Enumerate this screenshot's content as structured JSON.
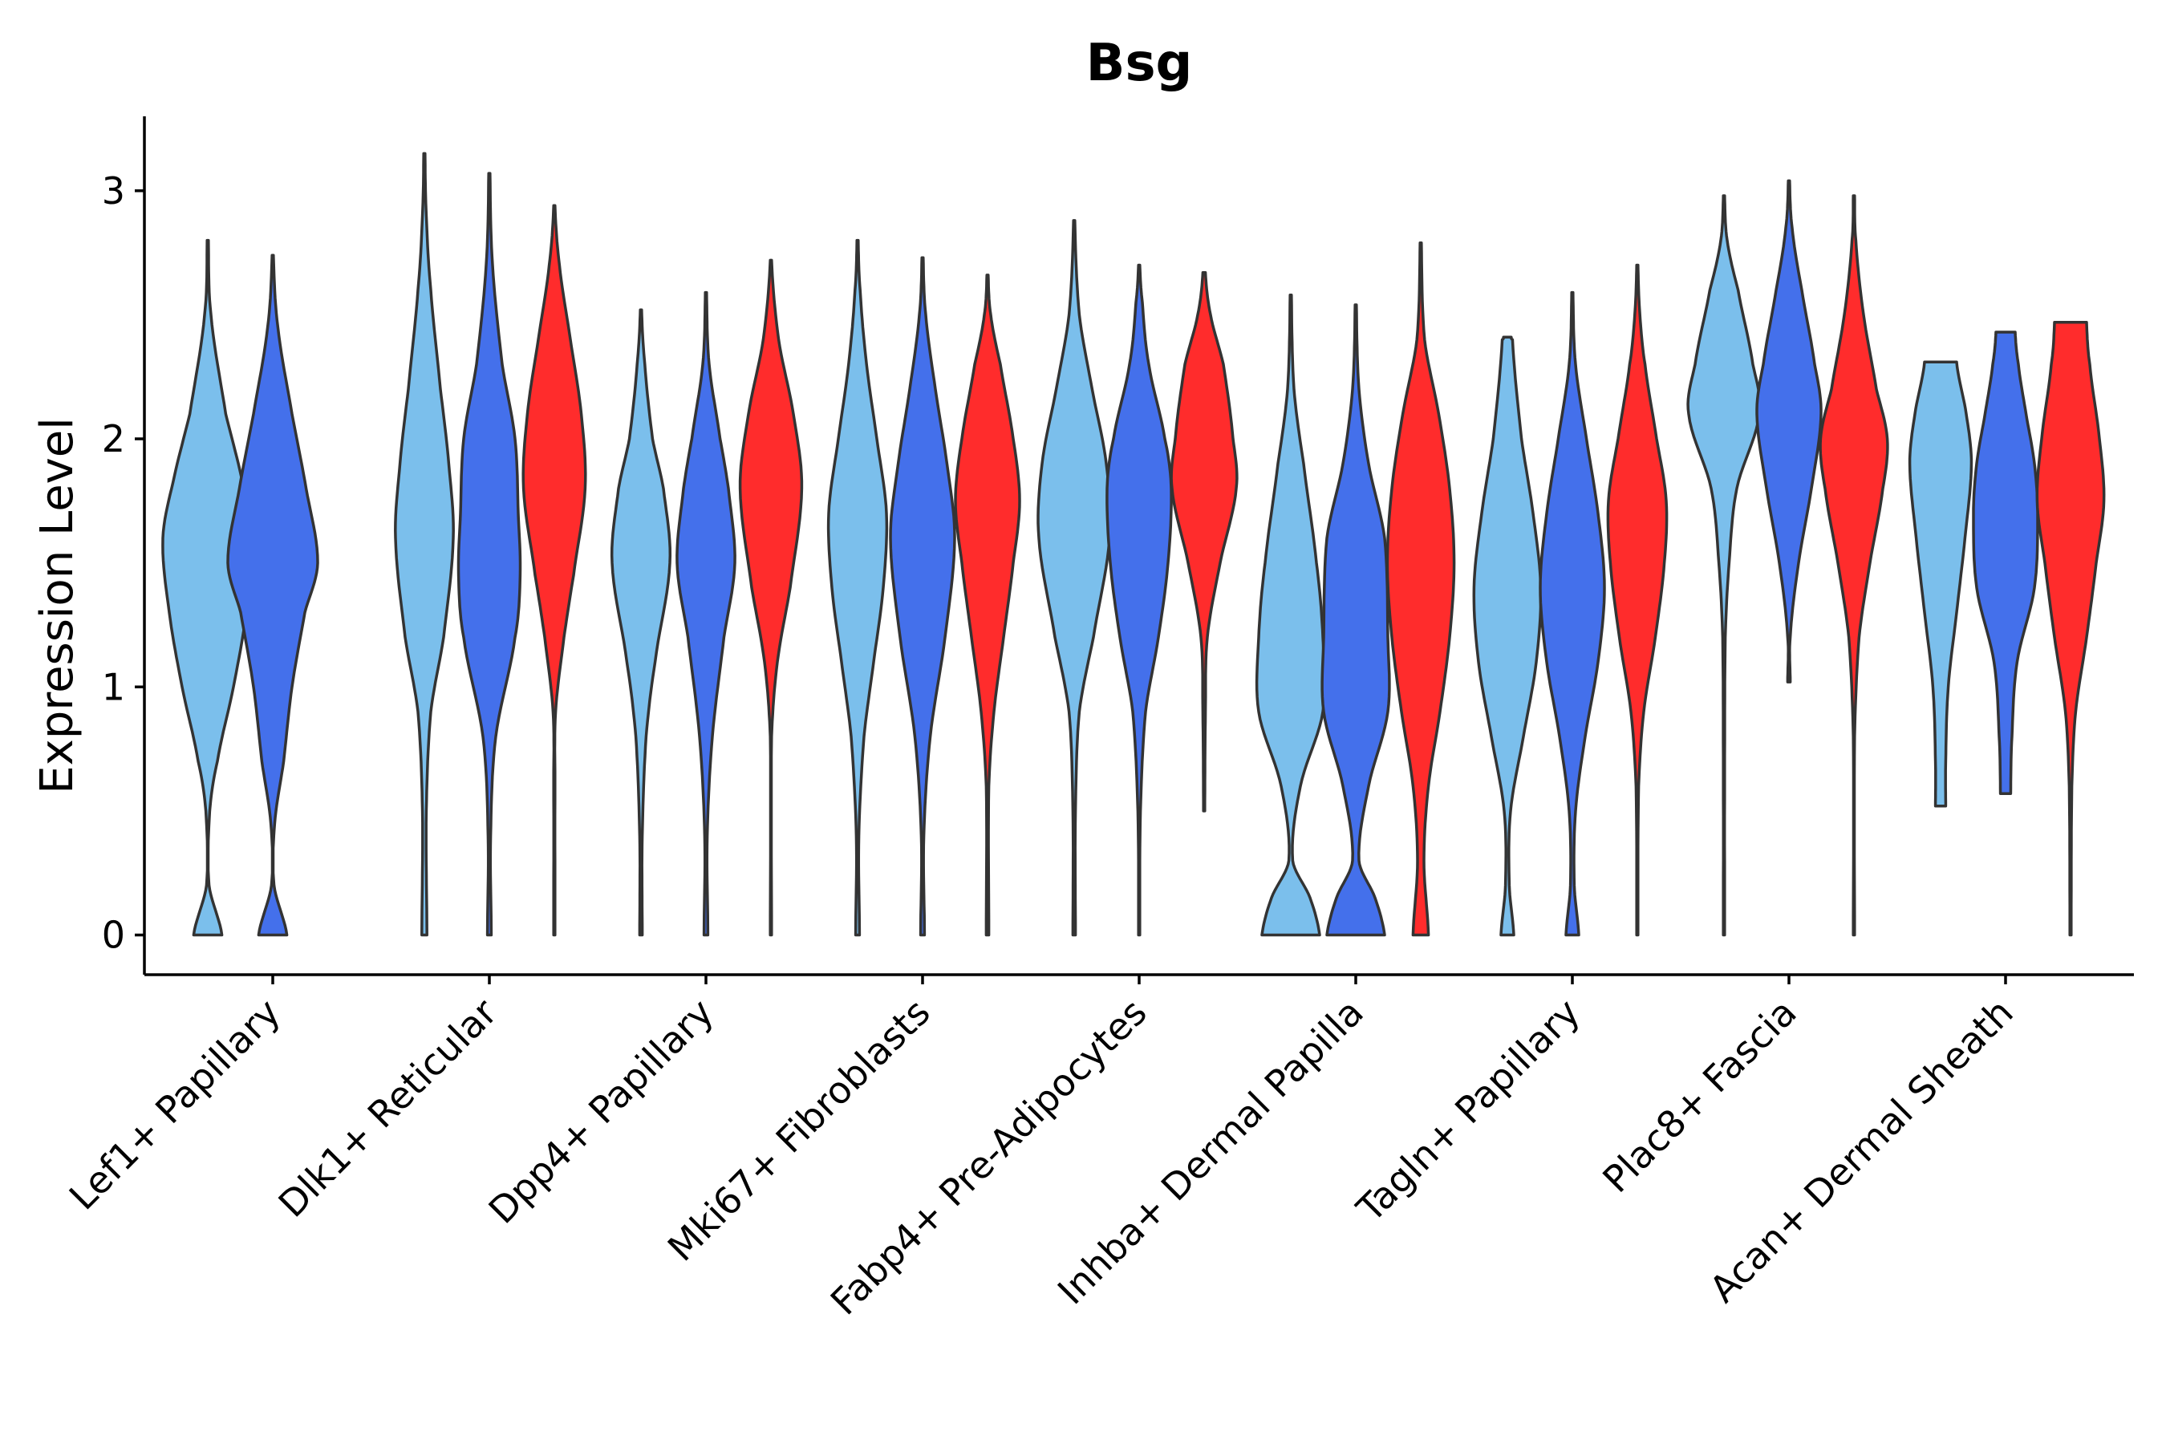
{
  "chart_data": {
    "type": "violin",
    "title": "Bsg",
    "xlabel": "",
    "ylabel": "Expression Level",
    "ylim": [
      -0.16,
      3.3
    ],
    "yticks": [
      0,
      1,
      2,
      3
    ],
    "grid": false,
    "legend": "none",
    "categories": [
      "Lef1+ Papillary",
      "Dlk1+ Reticular",
      "Dpp4+ Papillary",
      "Mki67+ Fibroblasts",
      "Fabp4+ Pre-Adipocytes",
      "Inhba+ Dermal Papilla",
      "Tagln+ Papillary",
      "Plac8+ Fascia",
      "Acan+ Dermal Sheath"
    ],
    "colors": [
      "#7BBFEC",
      "#4470EB",
      "#FF2C2C"
    ],
    "violins": [
      {
        "category": 0,
        "color": 0,
        "profile": [
          [
            0,
            0.22
          ],
          [
            0.2,
            0.02
          ],
          [
            0.5,
            0.03
          ],
          [
            0.7,
            0.15
          ],
          [
            1.0,
            0.4
          ],
          [
            1.3,
            0.6
          ],
          [
            1.6,
            0.7
          ],
          [
            1.85,
            0.52
          ],
          [
            2.1,
            0.28
          ],
          [
            2.5,
            0.05
          ],
          [
            2.8,
            0.01
          ]
        ]
      },
      {
        "category": 0,
        "color": 1,
        "profile": [
          [
            0,
            0.22
          ],
          [
            0.2,
            0.02
          ],
          [
            0.45,
            0.03
          ],
          [
            0.7,
            0.17
          ],
          [
            1.0,
            0.3
          ],
          [
            1.3,
            0.5
          ],
          [
            1.5,
            0.7
          ],
          [
            1.8,
            0.52
          ],
          [
            2.1,
            0.3
          ],
          [
            2.45,
            0.08
          ],
          [
            2.74,
            0.01
          ]
        ]
      },
      {
        "category": 1,
        "color": 0,
        "profile": [
          [
            0,
            0.04
          ],
          [
            0.5,
            0.03
          ],
          [
            0.9,
            0.1
          ],
          [
            1.2,
            0.3
          ],
          [
            1.6,
            0.45
          ],
          [
            1.9,
            0.38
          ],
          [
            2.2,
            0.25
          ],
          [
            2.6,
            0.1
          ],
          [
            2.9,
            0.03
          ],
          [
            3.15,
            0.01
          ]
        ]
      },
      {
        "category": 1,
        "color": 1,
        "profile": [
          [
            0,
            0.03
          ],
          [
            0.4,
            0.02
          ],
          [
            0.8,
            0.1
          ],
          [
            1.2,
            0.4
          ],
          [
            1.45,
            0.48
          ],
          [
            1.7,
            0.45
          ],
          [
            2.0,
            0.4
          ],
          [
            2.3,
            0.2
          ],
          [
            2.7,
            0.05
          ],
          [
            3.07,
            0.01
          ]
        ]
      },
      {
        "category": 1,
        "color": 2,
        "profile": [
          [
            0,
            0.01
          ],
          [
            0.6,
            0.01
          ],
          [
            0.9,
            0.02
          ],
          [
            1.2,
            0.15
          ],
          [
            1.45,
            0.3
          ],
          [
            1.8,
            0.48
          ],
          [
            2.1,
            0.42
          ],
          [
            2.4,
            0.25
          ],
          [
            2.7,
            0.08
          ],
          [
            2.94,
            0.01
          ]
        ]
      },
      {
        "category": 2,
        "color": 0,
        "profile": [
          [
            0,
            0.02
          ],
          [
            0.4,
            0.02
          ],
          [
            0.8,
            0.08
          ],
          [
            1.1,
            0.22
          ],
          [
            1.5,
            0.45
          ],
          [
            1.8,
            0.35
          ],
          [
            2.0,
            0.18
          ],
          [
            2.3,
            0.06
          ],
          [
            2.52,
            0.01
          ]
        ]
      },
      {
        "category": 2,
        "color": 1,
        "profile": [
          [
            0,
            0.03
          ],
          [
            0.4,
            0.02
          ],
          [
            0.8,
            0.1
          ],
          [
            1.2,
            0.28
          ],
          [
            1.5,
            0.45
          ],
          [
            1.8,
            0.35
          ],
          [
            2.0,
            0.22
          ],
          [
            2.3,
            0.05
          ],
          [
            2.59,
            0.01
          ]
        ]
      },
      {
        "category": 2,
        "color": 2,
        "profile": [
          [
            0,
            0.01
          ],
          [
            0.8,
            0.01
          ],
          [
            1.1,
            0.1
          ],
          [
            1.4,
            0.3
          ],
          [
            1.8,
            0.48
          ],
          [
            2.1,
            0.35
          ],
          [
            2.4,
            0.12
          ],
          [
            2.72,
            0.01
          ]
        ]
      },
      {
        "category": 3,
        "color": 0,
        "profile": [
          [
            0,
            0.03
          ],
          [
            0.4,
            0.02
          ],
          [
            0.8,
            0.1
          ],
          [
            1.1,
            0.25
          ],
          [
            1.4,
            0.4
          ],
          [
            1.7,
            0.45
          ],
          [
            2.0,
            0.3
          ],
          [
            2.3,
            0.14
          ],
          [
            2.6,
            0.04
          ],
          [
            2.8,
            0.01
          ]
        ]
      },
      {
        "category": 3,
        "color": 1,
        "profile": [
          [
            0,
            0.03
          ],
          [
            0.4,
            0.02
          ],
          [
            0.8,
            0.12
          ],
          [
            1.2,
            0.35
          ],
          [
            1.6,
            0.5
          ],
          [
            1.9,
            0.38
          ],
          [
            2.2,
            0.2
          ],
          [
            2.5,
            0.05
          ],
          [
            2.73,
            0.01
          ]
        ]
      },
      {
        "category": 3,
        "color": 2,
        "profile": [
          [
            0,
            0.02
          ],
          [
            0.6,
            0.02
          ],
          [
            0.9,
            0.1
          ],
          [
            1.2,
            0.25
          ],
          [
            1.5,
            0.4
          ],
          [
            1.75,
            0.5
          ],
          [
            2.0,
            0.4
          ],
          [
            2.3,
            0.2
          ],
          [
            2.5,
            0.05
          ],
          [
            2.66,
            0.01
          ]
        ]
      },
      {
        "category": 4,
        "color": 0,
        "profile": [
          [
            0,
            0.02
          ],
          [
            0.5,
            0.02
          ],
          [
            0.9,
            0.08
          ],
          [
            1.2,
            0.3
          ],
          [
            1.6,
            0.55
          ],
          [
            1.9,
            0.5
          ],
          [
            2.2,
            0.28
          ],
          [
            2.5,
            0.08
          ],
          [
            2.88,
            0.01
          ]
        ]
      },
      {
        "category": 4,
        "color": 1,
        "profile": [
          [
            0,
            0.01
          ],
          [
            0.5,
            0.02
          ],
          [
            0.9,
            0.1
          ],
          [
            1.2,
            0.3
          ],
          [
            1.5,
            0.45
          ],
          [
            1.8,
            0.5
          ],
          [
            2.0,
            0.4
          ],
          [
            2.3,
            0.15
          ],
          [
            2.55,
            0.05
          ],
          [
            2.7,
            0.01
          ]
        ]
      },
      {
        "category": 4,
        "color": 2,
        "profile": [
          [
            0.5,
            0.01
          ],
          [
            0.9,
            0.02
          ],
          [
            1.2,
            0.05
          ],
          [
            1.5,
            0.25
          ],
          [
            1.8,
            0.5
          ],
          [
            2.0,
            0.45
          ],
          [
            2.3,
            0.3
          ],
          [
            2.5,
            0.1
          ],
          [
            2.67,
            0.02
          ]
        ]
      },
      {
        "category": 5,
        "color": 0,
        "profile": [
          [
            0,
            0.45
          ],
          [
            0.15,
            0.3
          ],
          [
            0.3,
            0.03
          ],
          [
            0.6,
            0.15
          ],
          [
            0.9,
            0.5
          ],
          [
            1.2,
            0.5
          ],
          [
            1.5,
            0.4
          ],
          [
            1.9,
            0.2
          ],
          [
            2.2,
            0.05
          ],
          [
            2.58,
            0.01
          ]
        ]
      },
      {
        "category": 5,
        "color": 1,
        "profile": [
          [
            0,
            0.45
          ],
          [
            0.15,
            0.3
          ],
          [
            0.3,
            0.05
          ],
          [
            0.6,
            0.2
          ],
          [
            0.9,
            0.5
          ],
          [
            1.2,
            0.5
          ],
          [
            1.6,
            0.45
          ],
          [
            1.9,
            0.2
          ],
          [
            2.2,
            0.05
          ],
          [
            2.54,
            0.01
          ]
        ]
      },
      {
        "category": 5,
        "color": 2,
        "profile": [
          [
            0,
            0.12
          ],
          [
            0.3,
            0.05
          ],
          [
            0.6,
            0.12
          ],
          [
            0.9,
            0.3
          ],
          [
            1.2,
            0.45
          ],
          [
            1.5,
            0.52
          ],
          [
            1.8,
            0.45
          ],
          [
            2.1,
            0.28
          ],
          [
            2.4,
            0.06
          ],
          [
            2.79,
            0.01
          ]
        ]
      },
      {
        "category": 6,
        "color": 0,
        "profile": [
          [
            0,
            0.1
          ],
          [
            0.2,
            0.03
          ],
          [
            0.5,
            0.05
          ],
          [
            0.8,
            0.25
          ],
          [
            1.1,
            0.45
          ],
          [
            1.4,
            0.52
          ],
          [
            1.7,
            0.4
          ],
          [
            2.0,
            0.22
          ],
          [
            2.4,
            0.08
          ],
          [
            2.41,
            0.06
          ]
        ]
      },
      {
        "category": 6,
        "color": 1,
        "profile": [
          [
            0,
            0.1
          ],
          [
            0.2,
            0.03
          ],
          [
            0.5,
            0.05
          ],
          [
            0.8,
            0.2
          ],
          [
            1.1,
            0.4
          ],
          [
            1.4,
            0.5
          ],
          [
            1.7,
            0.4
          ],
          [
            2.0,
            0.22
          ],
          [
            2.3,
            0.05
          ],
          [
            2.59,
            0.01
          ]
        ]
      },
      {
        "category": 6,
        "color": 2,
        "profile": [
          [
            0,
            0.01
          ],
          [
            0.6,
            0.02
          ],
          [
            0.9,
            0.1
          ],
          [
            1.2,
            0.28
          ],
          [
            1.5,
            0.42
          ],
          [
            1.75,
            0.45
          ],
          [
            2.0,
            0.3
          ],
          [
            2.3,
            0.12
          ],
          [
            2.5,
            0.04
          ],
          [
            2.7,
            0.01
          ]
        ]
      },
      {
        "category": 7,
        "color": 0,
        "profile": [
          [
            0,
            0.01
          ],
          [
            0.6,
            0.01
          ],
          [
            1.2,
            0.02
          ],
          [
            1.5,
            0.08
          ],
          [
            1.8,
            0.2
          ],
          [
            2.1,
            0.55
          ],
          [
            2.3,
            0.45
          ],
          [
            2.6,
            0.22
          ],
          [
            2.8,
            0.05
          ],
          [
            2.98,
            0.01
          ]
        ]
      },
      {
        "category": 7,
        "color": 1,
        "profile": [
          [
            1.02,
            0.02
          ],
          [
            1.2,
            0.02
          ],
          [
            1.5,
            0.15
          ],
          [
            1.8,
            0.35
          ],
          [
            2.1,
            0.5
          ],
          [
            2.3,
            0.4
          ],
          [
            2.6,
            0.2
          ],
          [
            2.85,
            0.05
          ],
          [
            3.04,
            0.01
          ]
        ]
      },
      {
        "category": 7,
        "color": 2,
        "profile": [
          [
            0,
            0.01
          ],
          [
            0.8,
            0.01
          ],
          [
            1.2,
            0.08
          ],
          [
            1.5,
            0.25
          ],
          [
            1.8,
            0.45
          ],
          [
            2.0,
            0.52
          ],
          [
            2.2,
            0.35
          ],
          [
            2.5,
            0.15
          ],
          [
            2.8,
            0.03
          ],
          [
            2.98,
            0.01
          ]
        ]
      },
      {
        "category": 8,
        "color": 0,
        "profile": [
          [
            0.52,
            0.08
          ],
          [
            0.7,
            0.08
          ],
          [
            1.0,
            0.12
          ],
          [
            1.3,
            0.25
          ],
          [
            1.6,
            0.38
          ],
          [
            1.9,
            0.48
          ],
          [
            2.1,
            0.4
          ],
          [
            2.31,
            0.25
          ]
        ]
      },
      {
        "category": 8,
        "color": 1,
        "profile": [
          [
            0.57,
            0.08
          ],
          [
            0.8,
            0.1
          ],
          [
            1.1,
            0.18
          ],
          [
            1.4,
            0.45
          ],
          [
            1.7,
            0.5
          ],
          [
            1.9,
            0.45
          ],
          [
            2.1,
            0.32
          ],
          [
            2.3,
            0.2
          ],
          [
            2.43,
            0.15
          ]
        ]
      },
      {
        "category": 8,
        "color": 2,
        "profile": [
          [
            0,
            0.01
          ],
          [
            0.6,
            0.02
          ],
          [
            0.9,
            0.08
          ],
          [
            1.2,
            0.25
          ],
          [
            1.5,
            0.4
          ],
          [
            1.75,
            0.52
          ],
          [
            2.0,
            0.45
          ],
          [
            2.3,
            0.3
          ],
          [
            2.47,
            0.25
          ]
        ]
      }
    ]
  }
}
